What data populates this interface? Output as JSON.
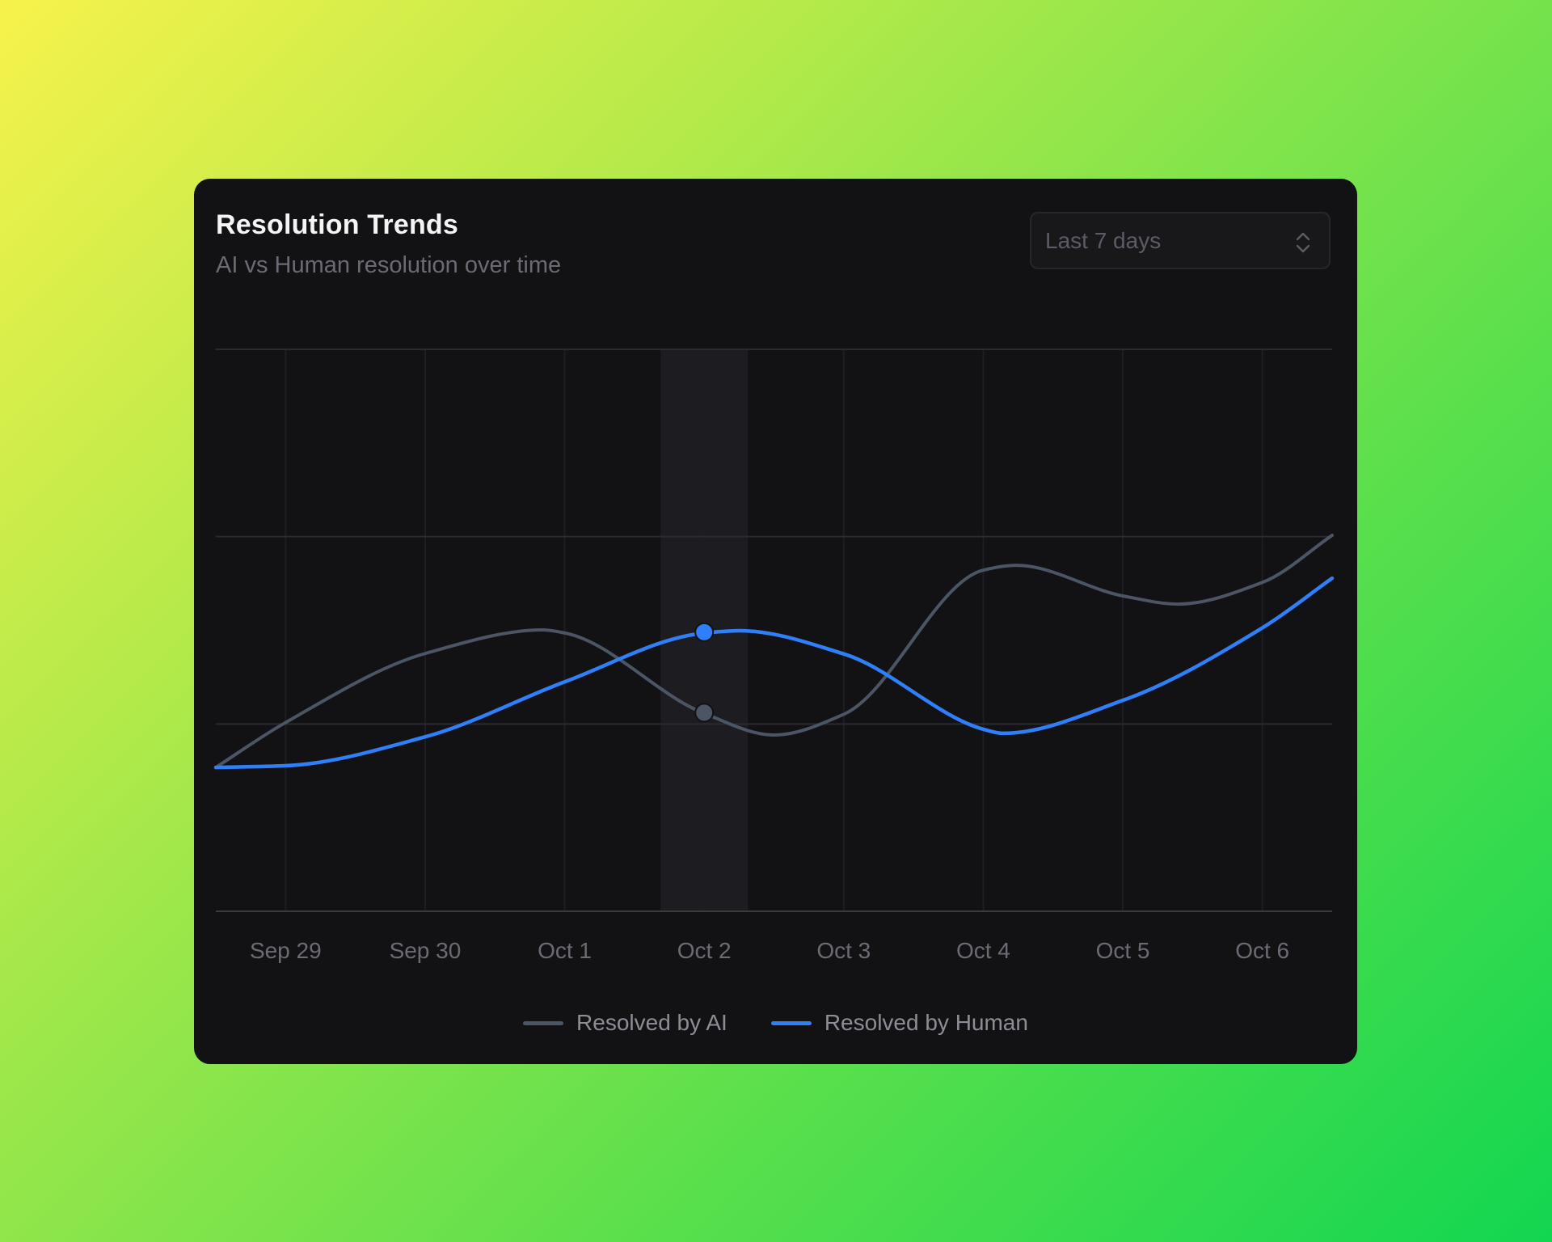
{
  "card": {
    "title": "Resolution Trends",
    "subtitle": "AI vs Human resolution over time"
  },
  "range_select": {
    "selected": "Last 7 days",
    "icon": "chevron-up-down-icon"
  },
  "colors": {
    "ai": "#4b5563",
    "human": "#2f80f8",
    "grid": "#2a2a2f",
    "axis": "#3a3a40",
    "hover_band": "#1d1d21",
    "card_bg": "#121215"
  },
  "legend": [
    {
      "key": "ai",
      "label": "Resolved by AI"
    },
    {
      "key": "human",
      "label": "Resolved by Human"
    }
  ],
  "tooltip": {
    "active_label": "Oct 2",
    "active_index": 3
  },
  "chart_data": {
    "type": "line",
    "title": "Resolution Trends",
    "subtitle": "AI vs Human resolution over time",
    "xlabel": "",
    "ylabel": "",
    "categories": [
      "Sep 29",
      "Sep 30",
      "Oct 1",
      "Oct 2",
      "Oct 3",
      "Oct 4",
      "Oct 5",
      "Oct 6"
    ],
    "series": [
      {
        "name": "Resolved by AI",
        "key": "ai",
        "values": [
          101,
          138,
          149,
          106,
          105,
          182,
          168,
          176
        ]
      },
      {
        "name": "Resolved by Human",
        "key": "human",
        "values": [
          78,
          93,
          123,
          149,
          137,
          97,
          113,
          152
        ]
      }
    ],
    "ylim": [
      0,
      300
    ],
    "y_gridlines": [
      0,
      100,
      200,
      300
    ],
    "y_tick_labels_visible": false,
    "grid": true,
    "legend_position": "bottom",
    "interpolation": "smooth",
    "highlighted_category": "Oct 2",
    "curve_points": {
      "ai": [
        [
          0.0,
          76.8
        ],
        [
          0.062,
          100.6
        ],
        [
          0.188,
          137.7
        ],
        [
          0.293,
          150.2
        ],
        [
          0.313,
          148.5
        ],
        [
          0.437,
          105.8
        ],
        [
          0.5,
          94.1
        ],
        [
          0.563,
          105.3
        ],
        [
          0.688,
          182.2
        ],
        [
          0.717,
          184.7
        ],
        [
          0.813,
          168.3
        ],
        [
          0.862,
          164.0
        ],
        [
          0.938,
          175.7
        ],
        [
          1.0,
          200.7
        ]
      ],
      "human": [
        [
          0.0,
          76.8
        ],
        [
          0.062,
          77.7
        ],
        [
          0.188,
          93.2
        ],
        [
          0.313,
          122.6
        ],
        [
          0.437,
          148.5
        ],
        [
          0.469,
          149.8
        ],
        [
          0.563,
          137.3
        ],
        [
          0.688,
          97.1
        ],
        [
          0.705,
          95.0
        ],
        [
          0.813,
          112.7
        ],
        [
          0.938,
          151.5
        ],
        [
          1.0,
          177.8
        ]
      ]
    }
  }
}
